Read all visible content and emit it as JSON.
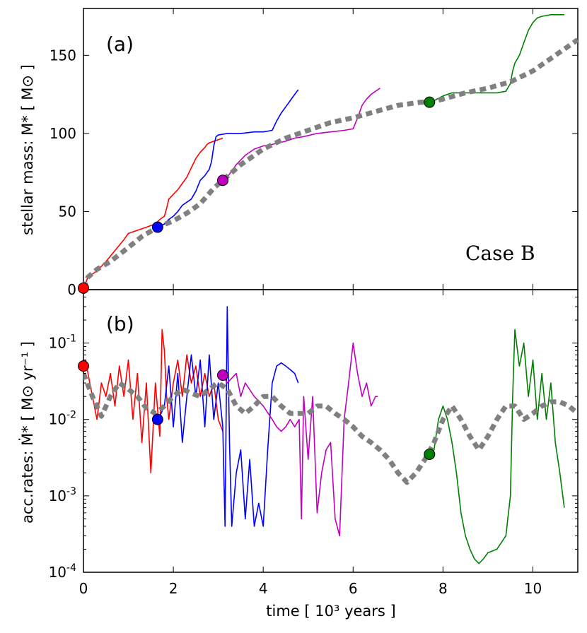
{
  "chart_data": [
    {
      "type": "line",
      "panel_label": "(a)",
      "annotation": "Case B",
      "ylabel": "stellar mass: M* [ M⊙ ]",
      "ylim": [
        0,
        180
      ],
      "yticks": [
        0,
        50,
        100,
        150
      ],
      "xlim": [
        0,
        11
      ],
      "xticks": [
        0,
        2,
        4,
        6,
        8,
        10
      ],
      "grid": false,
      "colors": {
        "red": "#ff0000",
        "blue": "#0000ff",
        "magenta": "#bf00bf",
        "green": "#008000",
        "dashed": "#808080"
      },
      "series": [
        {
          "color": "red",
          "x": [
            0.0,
            0.1,
            0.3,
            0.5,
            0.7,
            0.9,
            1.0,
            1.2,
            1.4,
            1.5,
            1.6,
            1.7,
            1.8,
            1.85,
            1.9,
            2.0,
            2.1,
            2.2,
            2.3,
            2.4,
            2.5,
            2.6,
            2.7,
            2.75,
            2.8,
            2.9,
            3.0,
            3.1
          ],
          "y": [
            1,
            8,
            12,
            18,
            25,
            32,
            36,
            38,
            40,
            41,
            42,
            45,
            47,
            52,
            58,
            61,
            64,
            68,
            72,
            78,
            84,
            88,
            91,
            93,
            94,
            95,
            96,
            97
          ]
        },
        {
          "color": "blue",
          "x": [
            1.65,
            1.8,
            1.9,
            2.0,
            2.1,
            2.2,
            2.4,
            2.5,
            2.6,
            2.7,
            2.8,
            2.85,
            2.9,
            2.95,
            3.0,
            3.2,
            3.5,
            3.8,
            4.0,
            4.2,
            4.3,
            4.4,
            4.5,
            4.6,
            4.7,
            4.78
          ],
          "y": [
            40,
            42,
            45,
            47,
            50,
            54,
            58,
            63,
            70,
            73,
            77,
            82,
            92,
            98,
            99,
            100,
            100,
            101,
            101,
            102,
            108,
            113,
            117,
            121,
            125,
            128
          ]
        },
        {
          "color": "magenta",
          "x": [
            3.1,
            3.2,
            3.4,
            3.6,
            3.8,
            4.0,
            4.2,
            4.5,
            4.7,
            4.9,
            5.2,
            5.5,
            5.8,
            6.0,
            6.1,
            6.2,
            6.3,
            6.4,
            6.5,
            6.6
          ],
          "y": [
            70,
            72,
            80,
            86,
            90,
            92,
            93,
            95,
            97,
            98,
            100,
            101,
            102,
            103,
            110,
            118,
            122,
            125,
            127,
            129
          ]
        },
        {
          "color": "green",
          "x": [
            7.7,
            7.8,
            8.0,
            8.2,
            8.4,
            8.6,
            8.8,
            9.0,
            9.2,
            9.4,
            9.5,
            9.55,
            9.6,
            9.7,
            9.8,
            9.9,
            10.0,
            10.1,
            10.2,
            10.4,
            10.6,
            10.7
          ],
          "y": [
            120,
            121,
            124,
            126,
            126,
            126,
            126,
            126,
            126,
            127,
            132,
            140,
            145,
            150,
            158,
            166,
            171,
            174,
            175,
            176,
            176,
            176
          ]
        },
        {
          "color": "dashed",
          "dashed": true,
          "x": [
            0,
            0.1,
            0.3,
            0.6,
            1.0,
            1.3,
            1.65,
            2.0,
            2.3,
            2.6,
            2.9,
            3.1,
            3.5,
            4.0,
            4.5,
            5.0,
            5.5,
            6.0,
            6.5,
            7.0,
            7.5,
            7.7,
            8.0,
            8.5,
            9.0,
            9.5,
            10.0,
            10.5,
            11.0
          ],
          "y": [
            1,
            8,
            13,
            18,
            27,
            34,
            40,
            44,
            49,
            55,
            65,
            70,
            80,
            90,
            97,
            102,
            107,
            110,
            114,
            118,
            120,
            120,
            122,
            126,
            129,
            133,
            140,
            150,
            160
          ]
        }
      ],
      "markers": [
        {
          "color": "red",
          "x": 0,
          "y": 1
        },
        {
          "color": "blue",
          "x": 1.65,
          "y": 40
        },
        {
          "color": "magenta",
          "x": 3.1,
          "y": 70
        },
        {
          "color": "green",
          "x": 7.7,
          "y": 120
        }
      ]
    },
    {
      "type": "line",
      "panel_label": "(b)",
      "ylabel": "acc.rates: Ṁ* [ M⊙ yr⁻¹ ]",
      "yscale": "log",
      "ylim": [
        0.0001,
        0.5
      ],
      "yticks": [
        0.0001,
        0.001,
        0.01,
        0.1
      ],
      "ytick_labels": [
        {
          "base": "10",
          "exp": "-4"
        },
        {
          "base": "10",
          "exp": "-3"
        },
        {
          "base": "10",
          "exp": "-2"
        },
        {
          "base": "10",
          "exp": "-1"
        }
      ],
      "xlabel": "time [ 10³  years ]",
      "xlim": [
        0,
        11
      ],
      "xticks": [
        0,
        2,
        4,
        6,
        8,
        10
      ],
      "xtick_labels": [
        "0",
        "2",
        "4",
        "6",
        "8",
        "10"
      ],
      "grid": false,
      "series": [
        {
          "color": "red",
          "x": [
            0,
            0.05,
            0.1,
            0.2,
            0.3,
            0.4,
            0.5,
            0.6,
            0.7,
            0.8,
            0.9,
            1.0,
            1.1,
            1.2,
            1.3,
            1.4,
            1.5,
            1.6,
            1.7,
            1.75,
            1.8,
            1.85,
            1.9,
            2.0,
            2.1,
            2.2,
            2.3,
            2.4,
            2.5,
            2.6,
            2.7,
            2.8,
            2.9,
            3.0,
            3.1
          ],
          "y": [
            0.05,
            0.06,
            0.04,
            0.02,
            0.01,
            0.03,
            0.02,
            0.04,
            0.015,
            0.05,
            0.02,
            0.06,
            0.01,
            0.04,
            0.005,
            0.03,
            0.002,
            0.03,
            0.006,
            0.15,
            0.08,
            0.02,
            0.01,
            0.03,
            0.06,
            0.02,
            0.07,
            0.03,
            0.05,
            0.02,
            0.04,
            0.02,
            0.03,
            0.01,
            0.007
          ]
        },
        {
          "color": "blue",
          "x": [
            1.65,
            1.7,
            1.8,
            1.9,
            2.0,
            2.1,
            2.2,
            2.3,
            2.4,
            2.5,
            2.6,
            2.7,
            2.8,
            2.9,
            3.0,
            3.1,
            3.15,
            3.2,
            3.25,
            3.3,
            3.4,
            3.5,
            3.6,
            3.7,
            3.8,
            3.9,
            4.0,
            4.1,
            4.2,
            4.3,
            4.4,
            4.5,
            4.6,
            4.7,
            4.78
          ],
          "y": [
            0.01,
            0.011,
            0.015,
            0.05,
            0.008,
            0.04,
            0.005,
            0.02,
            0.07,
            0.02,
            0.06,
            0.008,
            0.07,
            0.01,
            0.03,
            0.008,
            0.0004,
            0.3,
            0.005,
            0.0004,
            0.002,
            0.004,
            0.0005,
            0.003,
            0.0004,
            0.0008,
            0.0004,
            0.004,
            0.03,
            0.05,
            0.055,
            0.05,
            0.045,
            0.04,
            0.03
          ]
        },
        {
          "color": "magenta",
          "x": [
            3.1,
            3.2,
            3.4,
            3.5,
            3.6,
            3.8,
            4.0,
            4.2,
            4.3,
            4.4,
            4.5,
            4.6,
            4.7,
            4.8,
            4.85,
            4.9,
            5.0,
            5.1,
            5.2,
            5.3,
            5.4,
            5.5,
            5.6,
            5.7,
            5.8,
            5.9,
            6.0,
            6.1,
            6.2,
            6.3,
            6.4,
            6.5,
            6.55
          ],
          "y": [
            0.038,
            0.03,
            0.04,
            0.02,
            0.03,
            0.02,
            0.015,
            0.01,
            0.008,
            0.007,
            0.008,
            0.01,
            0.008,
            0.01,
            0.0005,
            0.02,
            0.003,
            0.02,
            0.0006,
            0.002,
            0.004,
            0.005,
            0.0005,
            0.0003,
            0.01,
            0.03,
            0.1,
            0.04,
            0.02,
            0.03,
            0.015,
            0.02,
            0.02
          ]
        },
        {
          "color": "green",
          "x": [
            7.7,
            7.8,
            7.9,
            8.0,
            8.1,
            8.2,
            8.3,
            8.4,
            8.5,
            8.6,
            8.7,
            8.8,
            8.9,
            9.0,
            9.2,
            9.4,
            9.5,
            9.55,
            9.6,
            9.7,
            9.8,
            9.9,
            10.0,
            10.1,
            10.2,
            10.3,
            10.4,
            10.5,
            10.6,
            10.7
          ],
          "y": [
            0.0035,
            0.004,
            0.01,
            0.015,
            0.01,
            0.005,
            0.002,
            0.0006,
            0.0003,
            0.0002,
            0.00015,
            0.00013,
            0.00015,
            0.00018,
            0.0002,
            0.0003,
            0.001,
            0.02,
            0.15,
            0.05,
            0.1,
            0.02,
            0.06,
            0.01,
            0.04,
            0.01,
            0.03,
            0.005,
            0.002,
            0.0007
          ]
        },
        {
          "color": "dashed",
          "dashed": true,
          "x": [
            0,
            0.2,
            0.4,
            0.6,
            0.8,
            1.0,
            1.2,
            1.4,
            1.6,
            1.8,
            2.0,
            2.2,
            2.4,
            2.6,
            2.8,
            3.0,
            3.2,
            3.4,
            3.6,
            3.8,
            4.0,
            4.2,
            4.4,
            4.6,
            4.8,
            5.0,
            5.2,
            5.4,
            5.6,
            5.8,
            6.0,
            6.2,
            6.4,
            6.6,
            6.8,
            7.0,
            7.2,
            7.4,
            7.6,
            7.8,
            8.0,
            8.2,
            8.4,
            8.6,
            8.8,
            9.0,
            9.2,
            9.4,
            9.6,
            9.8,
            10.0,
            10.2,
            10.4,
            10.6,
            10.8,
            11.0
          ],
          "y": [
            0.04,
            0.02,
            0.011,
            0.02,
            0.03,
            0.025,
            0.02,
            0.014,
            0.012,
            0.015,
            0.02,
            0.025,
            0.022,
            0.02,
            0.025,
            0.03,
            0.025,
            0.015,
            0.012,
            0.015,
            0.02,
            0.02,
            0.015,
            0.012,
            0.012,
            0.012,
            0.015,
            0.015,
            0.012,
            0.01,
            0.008,
            0.006,
            0.005,
            0.004,
            0.003,
            0.002,
            0.0015,
            0.002,
            0.003,
            0.005,
            0.01,
            0.015,
            0.01,
            0.006,
            0.004,
            0.006,
            0.01,
            0.015,
            0.015,
            0.01,
            0.012,
            0.015,
            0.017,
            0.017,
            0.015,
            0.012
          ]
        }
      ],
      "markers": [
        {
          "color": "red",
          "x": 0,
          "y": 0.05
        },
        {
          "color": "blue",
          "x": 1.65,
          "y": 0.01
        },
        {
          "color": "magenta",
          "x": 3.1,
          "y": 0.038
        },
        {
          "color": "green",
          "x": 7.7,
          "y": 0.0035
        }
      ]
    }
  ]
}
